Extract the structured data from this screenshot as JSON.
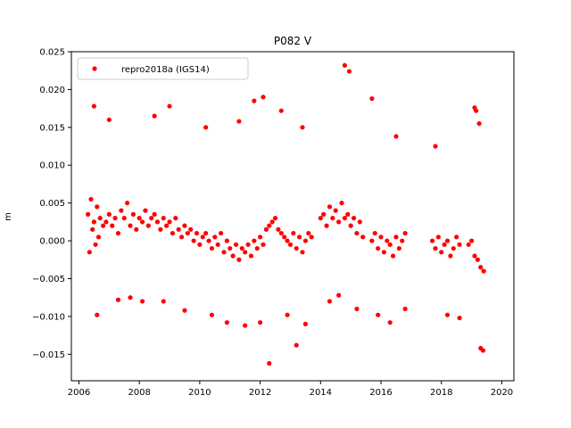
{
  "chart_data": {
    "type": "scatter",
    "title": "P082 V",
    "xlabel": "",
    "ylabel": "m",
    "xlim": [
      2005.75,
      2020.4
    ],
    "ylim": [
      -0.0185,
      0.025
    ],
    "x_ticks": [
      2006,
      2008,
      2010,
      2012,
      2014,
      2016,
      2018,
      2020
    ],
    "y_ticks": [
      -0.015,
      -0.01,
      -0.005,
      0.0,
      0.005,
      0.01,
      0.015,
      0.02,
      0.025
    ],
    "x_tick_labels": [
      "2006",
      "2008",
      "2010",
      "2012",
      "2014",
      "2016",
      "2018",
      "2020"
    ],
    "y_tick_labels": [
      "−0.015",
      "−0.010",
      "−0.005",
      "0.000",
      "0.005",
      "0.010",
      "0.015",
      "0.020",
      "0.025"
    ],
    "grid": false,
    "legend_position": "top-left",
    "marker_color": "#ff0000",
    "series": [
      {
        "name": "repro2018a (IGS14)",
        "x": [
          2006.3,
          2006.35,
          2006.4,
          2006.45,
          2006.5,
          2006.55,
          2006.6,
          2006.65,
          2006.7,
          2006.8,
          2006.9,
          2007.0,
          2007.1,
          2007.2,
          2007.3,
          2007.4,
          2007.5,
          2007.6,
          2007.7,
          2007.8,
          2007.9,
          2008.0,
          2008.1,
          2008.2,
          2008.3,
          2008.4,
          2008.5,
          2008.6,
          2008.7,
          2008.8,
          2008.9,
          2009.0,
          2009.1,
          2009.2,
          2009.3,
          2009.4,
          2009.5,
          2009.6,
          2009.7,
          2009.8,
          2009.9,
          2010.0,
          2010.1,
          2010.2,
          2010.3,
          2010.4,
          2010.5,
          2010.6,
          2010.7,
          2010.8,
          2010.9,
          2011.0,
          2011.1,
          2011.2,
          2011.3,
          2011.4,
          2011.5,
          2011.6,
          2011.7,
          2011.8,
          2011.9,
          2012.0,
          2012.1,
          2012.2,
          2012.3,
          2012.4,
          2012.5,
          2012.6,
          2012.7,
          2012.8,
          2012.9,
          2013.0,
          2013.1,
          2013.2,
          2013.3,
          2013.4,
          2013.5,
          2013.6,
          2013.7,
          2014.0,
          2014.1,
          2014.2,
          2014.3,
          2014.4,
          2014.5,
          2014.6,
          2014.7,
          2014.8,
          2014.9,
          2015.0,
          2015.1,
          2015.2,
          2015.3,
          2015.4,
          2015.7,
          2015.8,
          2015.9,
          2016.0,
          2016.1,
          2016.2,
          2016.3,
          2016.4,
          2016.5,
          2016.6,
          2016.7,
          2016.8,
          2017.7,
          2017.8,
          2017.9,
          2018.0,
          2018.1,
          2018.2,
          2018.3,
          2018.4,
          2018.5,
          2018.6,
          2018.9,
          2019.0,
          2019.1,
          2019.2,
          2019.3,
          2019.4,
          2006.5,
          2007.0,
          2008.5,
          2009.0,
          2010.2,
          2011.3,
          2011.8,
          2012.1,
          2012.7,
          2013.4,
          2014.8,
          2014.95,
          2015.7,
          2016.5,
          2017.8,
          2019.1,
          2019.15,
          2019.25,
          2006.6,
          2007.3,
          2007.7,
          2008.1,
          2008.8,
          2009.5,
          2010.4,
          2010.9,
          2011.5,
          2012.0,
          2012.3,
          2012.9,
          2013.2,
          2013.5,
          2014.3,
          2014.6,
          2015.2,
          2015.9,
          2016.3,
          2016.8,
          2018.2,
          2018.6,
          2019.3,
          2019.38
        ],
        "y": [
          0.0035,
          -0.0015,
          0.0055,
          0.0015,
          0.0025,
          -0.0005,
          0.0045,
          0.0005,
          0.003,
          0.002,
          0.0025,
          0.0035,
          0.002,
          0.003,
          0.001,
          0.004,
          0.003,
          0.005,
          0.002,
          0.0035,
          0.0015,
          0.003,
          0.0025,
          0.004,
          0.002,
          0.003,
          0.0035,
          0.0025,
          0.0015,
          0.003,
          0.002,
          0.0025,
          0.001,
          0.003,
          0.0015,
          0.0005,
          0.002,
          0.001,
          0.0015,
          0.0,
          0.001,
          -0.0005,
          0.0005,
          0.001,
          0.0,
          -0.001,
          0.0005,
          -0.0005,
          0.001,
          -0.0015,
          0.0,
          -0.001,
          -0.002,
          -0.0005,
          -0.0025,
          -0.001,
          -0.0015,
          -0.0005,
          -0.002,
          0.0,
          -0.001,
          0.0005,
          -0.0005,
          0.0015,
          0.002,
          0.0025,
          0.003,
          0.0015,
          0.001,
          0.0005,
          0.0,
          -0.0005,
          0.001,
          -0.001,
          0.0005,
          -0.0015,
          0.0,
          0.001,
          0.0005,
          0.003,
          0.0035,
          0.002,
          0.0045,
          0.003,
          0.004,
          0.0025,
          0.005,
          0.003,
          0.0035,
          0.002,
          0.003,
          0.001,
          0.0025,
          0.0005,
          0.0,
          0.001,
          -0.001,
          0.0005,
          -0.0015,
          0.0,
          -0.0005,
          -0.002,
          0.0005,
          -0.001,
          0.0,
          0.001,
          0.0,
          -0.001,
          0.0005,
          -0.0015,
          -0.0005,
          0.0,
          -0.002,
          -0.001,
          0.0005,
          -0.0005,
          -0.0005,
          0.0,
          -0.002,
          -0.0025,
          -0.0035,
          -0.004,
          0.0178,
          0.016,
          0.0165,
          0.0178,
          0.015,
          0.0158,
          0.0185,
          0.019,
          0.0172,
          0.015,
          0.0232,
          0.0224,
          0.0188,
          0.0138,
          0.0125,
          0.0176,
          0.0172,
          0.0155,
          -0.0098,
          -0.0078,
          -0.0075,
          -0.008,
          -0.008,
          -0.0092,
          -0.0098,
          -0.0108,
          -0.0112,
          -0.0108,
          -0.0162,
          -0.0098,
          -0.0138,
          -0.011,
          -0.008,
          -0.0072,
          -0.009,
          -0.0098,
          -0.0108,
          -0.009,
          -0.0098,
          -0.0102,
          -0.0142,
          -0.0145
        ]
      }
    ]
  }
}
